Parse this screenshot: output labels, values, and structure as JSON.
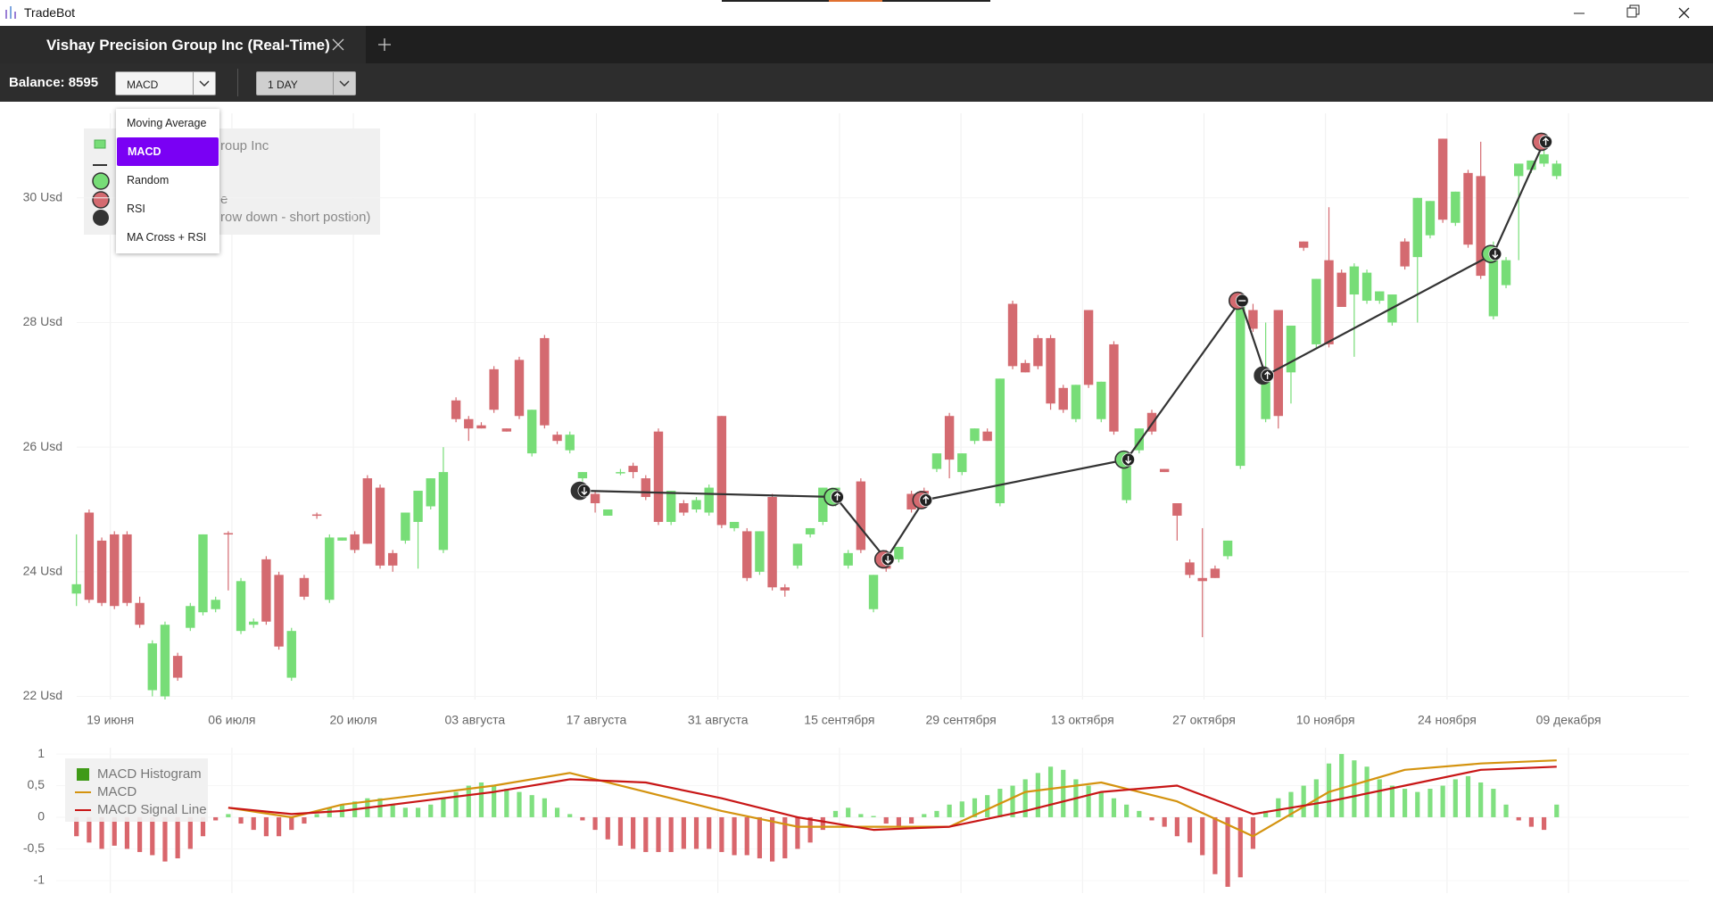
{
  "window": {
    "title": "TradeBot"
  },
  "tab": {
    "title": "Vishay Precision Group Inc (Real-Time)"
  },
  "toolbar": {
    "balance": "Balance: 8595",
    "indicator": "MACD",
    "period": "1 DAY"
  },
  "menu": {
    "items": [
      "Moving Average",
      "MACD",
      "Random",
      "RSI",
      "MA Cross + RSI"
    ],
    "selected": 1
  },
  "chart_data": [
    {
      "type": "candlestick",
      "open": [
        23.65,
        24.95,
        24.5,
        24.6,
        24.6,
        23.5,
        22.1,
        22.0,
        22.65,
        23.1,
        23.35,
        23.4,
        24.62,
        23.05,
        23.15,
        24.2,
        23.95,
        22.3,
        23.9,
        24.92,
        23.55,
        24.5,
        24.6,
        25.5,
        25.35,
        24.3,
        24.5,
        24.8,
        25.05,
        24.35,
        26.75,
        26.45,
        26.35,
        27.25,
        26.3,
        27.4,
        25.9,
        27.75,
        26.2,
        25.95,
        25.5,
        25.25,
        24.9,
        25.6,
        25.7,
        25.5,
        26.25,
        24.8,
        25.1,
        25.0,
        24.95,
        26.5,
        24.7,
        24.65,
        24.0,
        25.2,
        23.75,
        24.1,
        24.6,
        24.8,
        25.1,
        24.1,
        25.45,
        23.4,
        24.3,
        24.2,
        25.25,
        25.3,
        25.65,
        26.5,
        25.6,
        26.1,
        26.25,
        25.1,
        28.3,
        27.35,
        27.75,
        27.75,
        26.95,
        26.45,
        28.2,
        26.45,
        27.65,
        25.15,
        25.95,
        26.55,
        25.65,
        25.1,
        24.15,
        23.9,
        24.05,
        24.25,
        25.7,
        28.2,
        26.45,
        28.2,
        27.2,
        29.3,
        27.65,
        29.0,
        28.8,
        28.45,
        28.35,
        28.35,
        28.0,
        29.3,
        29.05,
        29.4,
        30.95,
        29.6,
        30.4,
        30.35,
        28.1,
        28.6,
        30.35,
        30.45,
        30.55,
        30.35
      ],
      "high": [
        24.6,
        25.0,
        24.55,
        24.65,
        24.65,
        23.6,
        22.9,
        23.2,
        22.7,
        23.5,
        24.6,
        23.6,
        24.65,
        23.9,
        23.25,
        24.25,
        24.0,
        23.1,
        23.95,
        24.95,
        24.6,
        24.55,
        24.65,
        25.55,
        25.4,
        24.35,
        24.95,
        25.3,
        25.5,
        26.0,
        26.8,
        26.5,
        26.4,
        27.3,
        26.3,
        27.45,
        26.6,
        27.8,
        26.25,
        26.25,
        25.6,
        25.3,
        25.0,
        25.65,
        25.75,
        25.55,
        26.3,
        25.3,
        25.15,
        25.2,
        25.4,
        26.5,
        24.8,
        24.7,
        24.65,
        25.25,
        23.8,
        24.45,
        24.7,
        25.35,
        25.35,
        24.35,
        25.5,
        23.95,
        24.35,
        24.4,
        25.3,
        25.35,
        25.9,
        26.55,
        25.9,
        26.3,
        26.3,
        27.1,
        28.35,
        27.4,
        27.8,
        27.8,
        27.0,
        27.0,
        28.2,
        27.05,
        27.7,
        25.8,
        26.3,
        26.6,
        25.65,
        25.1,
        24.2,
        24.7,
        24.1,
        24.5,
        28.4,
        28.3,
        28.0,
        28.2,
        27.95,
        29.3,
        28.7,
        29.85,
        28.85,
        28.95,
        28.85,
        28.5,
        28.45,
        29.35,
        30.0,
        29.95,
        30.95,
        30.1,
        30.45,
        30.9,
        29.3,
        29.05,
        30.55,
        30.6,
        30.95,
        30.6
      ],
      "low": [
        23.45,
        23.5,
        23.45,
        23.4,
        23.45,
        23.1,
        22.0,
        21.95,
        22.25,
        23.05,
        23.3,
        23.35,
        23.7,
        23.0,
        23.1,
        23.15,
        22.75,
        22.25,
        23.55,
        24.85,
        23.5,
        24.5,
        24.3,
        24.45,
        24.05,
        24.0,
        24.45,
        24.05,
        25.0,
        24.3,
        26.4,
        26.1,
        26.3,
        26.55,
        26.25,
        26.45,
        25.85,
        26.3,
        26.05,
        25.9,
        25.45,
        24.95,
        24.9,
        25.55,
        25.5,
        25.15,
        24.75,
        24.75,
        24.9,
        24.95,
        24.9,
        24.7,
        24.65,
        23.85,
        23.95,
        23.7,
        23.6,
        24.05,
        24.55,
        24.75,
        25.05,
        24.05,
        24.3,
        23.35,
        24.0,
        24.15,
        24.95,
        25.05,
        25.6,
        25.5,
        25.55,
        26.05,
        26.1,
        25.05,
        27.25,
        27.2,
        27.25,
        26.6,
        26.55,
        26.4,
        26.95,
        26.4,
        26.2,
        25.1,
        25.9,
        26.2,
        25.6,
        24.5,
        23.9,
        22.95,
        23.9,
        24.2,
        25.65,
        27.85,
        26.4,
        26.3,
        26.7,
        29.15,
        27.6,
        27.6,
        28.25,
        27.45,
        28.3,
        28.3,
        27.95,
        28.85,
        28.0,
        29.35,
        29.6,
        29.55,
        29.2,
        28.7,
        28.05,
        28.55,
        29.0,
        30.4,
        30.5,
        30.3
      ],
      "close": [
        23.8,
        23.55,
        23.5,
        23.45,
        23.5,
        23.15,
        22.85,
        23.15,
        22.3,
        23.45,
        24.6,
        23.55,
        24.6,
        23.85,
        23.2,
        23.2,
        22.8,
        23.05,
        23.6,
        24.9,
        24.55,
        24.55,
        24.35,
        24.45,
        24.1,
        24.1,
        24.95,
        25.3,
        25.5,
        25.6,
        26.45,
        26.3,
        26.3,
        26.6,
        26.25,
        26.5,
        26.6,
        26.35,
        26.1,
        26.2,
        25.6,
        25.1,
        25.0,
        25.6,
        25.6,
        25.2,
        24.8,
        25.3,
        24.95,
        25.15,
        25.35,
        24.75,
        24.8,
        23.9,
        24.65,
        23.75,
        23.7,
        24.45,
        24.7,
        25.35,
        25.35,
        24.3,
        24.35,
        23.95,
        24.05,
        24.4,
        25.0,
        25.1,
        25.9,
        25.8,
        25.9,
        26.3,
        26.1,
        27.1,
        27.3,
        27.2,
        27.3,
        26.7,
        26.6,
        27.0,
        27.0,
        27.05,
        26.25,
        25.8,
        26.3,
        26.25,
        25.6,
        24.9,
        23.95,
        23.85,
        23.9,
        24.5,
        28.35,
        27.9,
        27.2,
        26.5,
        27.95,
        29.2,
        28.7,
        27.65,
        28.25,
        28.9,
        28.8,
        28.5,
        28.45,
        28.9,
        30.0,
        29.95,
        29.65,
        30.1,
        29.25,
        28.75,
        29.1,
        29.0,
        30.55,
        30.6,
        30.7,
        30.55
      ],
      "up_color": "#77dd77",
      "down_color": "#d46a70",
      "ylim": [
        21.95,
        31.3
      ],
      "yticks": [
        {
          "value": 22,
          "label": "22 Usd"
        },
        {
          "value": 24,
          "label": "24 Usd"
        },
        {
          "value": 26,
          "label": "26 Usd"
        },
        {
          "value": 28,
          "label": "28 Usd"
        },
        {
          "value": 30,
          "label": "30 Usd"
        }
      ],
      "x_labels": [
        "19 июня",
        "06 июля",
        "20 июля",
        "03 августа",
        "17 августа",
        "31 августа",
        "15 сентября",
        "29 сентября",
        "13 октября",
        "27 октября",
        "10 ноября",
        "24 ноября",
        "09 декабря"
      ],
      "grid": true,
      "trades": {
        "candles": [
          40,
          60,
          64,
          67,
          83,
          92,
          94,
          112,
          116
        ],
        "values": [
          25.3,
          25.2,
          24.2,
          25.15,
          25.8,
          28.35,
          27.15,
          29.1,
          30.9
        ],
        "colors": [
          "#333333",
          "#77dd77",
          "#d46a70",
          "#d46a70",
          "#77dd77",
          "#d46a70",
          "#333333",
          "#77dd77",
          "#d46a70"
        ],
        "arrows": [
          "down",
          "up",
          "down",
          "up",
          "down",
          "minus",
          "up",
          "down",
          "up"
        ],
        "line_color": "#333333"
      },
      "legend": {
        "texts": [
          "roup Inc",
          "e",
          "row down - short postion)"
        ]
      }
    },
    {
      "type": "combo",
      "series": [
        {
          "name": "MACD Histogram",
          "type": "bar",
          "color": "#3f9a17",
          "up_color": "#80e080",
          "down_color": "#d9666c",
          "values": [
            -0.3,
            -0.4,
            -0.5,
            -0.45,
            -0.5,
            -0.55,
            -0.6,
            -0.7,
            -0.65,
            -0.5,
            -0.3,
            -0.05,
            0.05,
            -0.1,
            -0.2,
            -0.3,
            -0.3,
            -0.2,
            -0.1,
            0.05,
            0.15,
            0.2,
            0.25,
            0.3,
            0.3,
            0.2,
            0.15,
            0.15,
            0.2,
            0.3,
            0.4,
            0.5,
            0.55,
            0.5,
            0.45,
            0.4,
            0.35,
            0.3,
            0.15,
            0.05,
            -0.05,
            -0.2,
            -0.35,
            -0.45,
            -0.5,
            -0.55,
            -0.55,
            -0.55,
            -0.5,
            -0.5,
            -0.5,
            -0.55,
            -0.6,
            -0.6,
            -0.65,
            -0.7,
            -0.65,
            -0.5,
            -0.4,
            -0.2,
            0.1,
            0.15,
            0.05,
            0.02,
            -0.1,
            -0.15,
            -0.1,
            0.05,
            0.1,
            0.2,
            0.25,
            0.3,
            0.35,
            0.45,
            0.5,
            0.6,
            0.7,
            0.8,
            0.75,
            0.6,
            0.5,
            0.4,
            0.3,
            0.2,
            0.1,
            -0.05,
            -0.15,
            -0.3,
            -0.4,
            -0.6,
            -0.9,
            -1.1,
            -0.95,
            -0.5,
            0.1,
            0.3,
            0.4,
            0.5,
            0.6,
            0.85,
            1.0,
            0.9,
            0.8,
            0.6,
            0.5,
            0.45,
            0.4,
            0.45,
            0.5,
            0.6,
            0.65,
            0.55,
            0.45,
            0.2,
            -0.05,
            -0.15,
            -0.2,
            0.2
          ]
        },
        {
          "name": "MACD",
          "type": "line",
          "color": "#d4930f",
          "x": [
            12,
            17,
            21,
            27,
            33,
            39,
            45,
            51,
            57,
            63,
            69,
            75,
            81,
            87,
            93,
            99,
            105,
            111,
            117
          ],
          "values": [
            0.15,
            0.0,
            0.2,
            0.35,
            0.5,
            0.7,
            0.4,
            0.1,
            -0.15,
            -0.15,
            -0.15,
            0.4,
            0.55,
            0.25,
            -0.3,
            0.4,
            0.75,
            0.85,
            0.9
          ]
        },
        {
          "name": "MACD Signal Line",
          "type": "line",
          "color": "#c81616",
          "x": [
            12,
            17,
            21,
            27,
            33,
            39,
            45,
            51,
            57,
            63,
            69,
            75,
            81,
            87,
            93,
            99,
            105,
            111,
            117
          ],
          "values": [
            0.15,
            0.05,
            0.1,
            0.25,
            0.4,
            0.6,
            0.55,
            0.3,
            0.0,
            -0.2,
            -0.15,
            0.1,
            0.4,
            0.5,
            0.05,
            0.25,
            0.5,
            0.75,
            0.8
          ]
        }
      ],
      "ylim": [
        -1.2,
        1.1
      ],
      "yticks": [
        1,
        {
          "value": 0.5,
          "label": "0,5"
        },
        0,
        {
          "value": -0.5,
          "label": "-0,5"
        },
        -1
      ]
    }
  ]
}
